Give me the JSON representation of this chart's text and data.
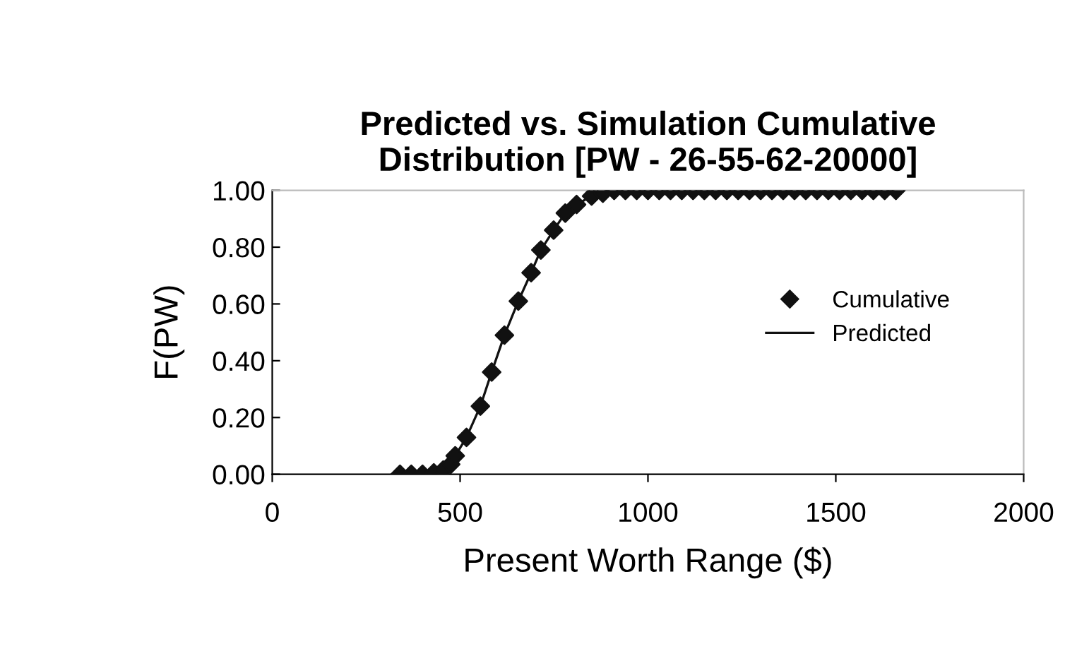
{
  "chart_data": {
    "type": "scatter",
    "title": "Predicted vs. Simulation Cumulative\nDistribution [PW - 26-55-62-20000]",
    "xlabel": "Present Worth Range ($)",
    "ylabel": "F(PW)",
    "xlim": [
      0,
      2000
    ],
    "xticks": [
      0,
      500,
      1000,
      1500,
      2000
    ],
    "ylim": [
      0,
      1
    ],
    "yticks": [
      {
        "value": 0,
        "label": "0.00"
      },
      {
        "value": 0.2,
        "label": "0.20"
      },
      {
        "value": 0.4,
        "label": "0.40"
      },
      {
        "value": 0.6,
        "label": "0.60"
      },
      {
        "value": 0.8,
        "label": "0.80"
      },
      {
        "value": 1,
        "label": "1.00"
      }
    ],
    "grid": false,
    "legend": "right",
    "series": [
      {
        "name": "Cumulative",
        "marker": "diamond",
        "color": "#111111",
        "x": [
          340,
          370,
          400,
          430,
          455,
          475,
          487,
          517,
          554,
          584,
          618,
          655,
          689,
          715,
          749,
          780,
          810,
          850,
          880,
          910,
          940,
          970,
          1000,
          1030,
          1060,
          1090,
          1120,
          1150,
          1180,
          1210,
          1240,
          1270,
          1300,
          1330,
          1360,
          1390,
          1420,
          1450,
          1480,
          1510,
          1540,
          1570,
          1600,
          1630,
          1660
        ],
        "values": [
          0,
          0,
          0,
          0.005,
          0.015,
          0.035,
          0.065,
          0.13,
          0.24,
          0.36,
          0.49,
          0.61,
          0.71,
          0.79,
          0.86,
          0.92,
          0.95,
          0.98,
          0.99,
          1,
          1,
          1,
          1,
          1,
          1,
          1,
          1,
          1,
          1,
          1,
          1,
          1,
          1,
          1,
          1,
          1,
          1,
          1,
          1,
          1,
          1,
          1,
          1,
          1,
          1
        ]
      },
      {
        "name": "Predicted",
        "type": "line",
        "marker": "none",
        "line_style": "solid",
        "color": "#111111",
        "x": [
          340,
          400,
          455,
          487,
          517,
          554,
          584,
          618,
          655,
          689,
          715,
          749,
          780,
          810,
          850,
          910,
          1000,
          1660
        ],
        "values": [
          0,
          0,
          0.015,
          0.065,
          0.13,
          0.24,
          0.36,
          0.49,
          0.61,
          0.71,
          0.79,
          0.86,
          0.92,
          0.95,
          0.98,
          1,
          1,
          1
        ]
      }
    ]
  }
}
